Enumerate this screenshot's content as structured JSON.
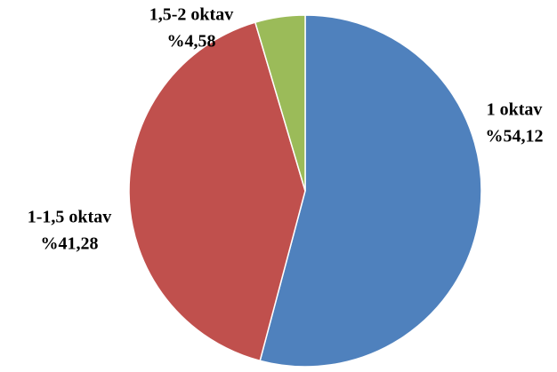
{
  "chart_data": {
    "type": "pie",
    "categories": [
      "1 oktav",
      "1-1,5 oktav",
      "1,5-2 oktav"
    ],
    "values": [
      54.12,
      41.28,
      4.58
    ],
    "value_labels": [
      "%54,12",
      "%41,28",
      "%4,58"
    ],
    "colors": [
      "#4f81bd",
      "#c0504d",
      "#9bbb59"
    ]
  }
}
